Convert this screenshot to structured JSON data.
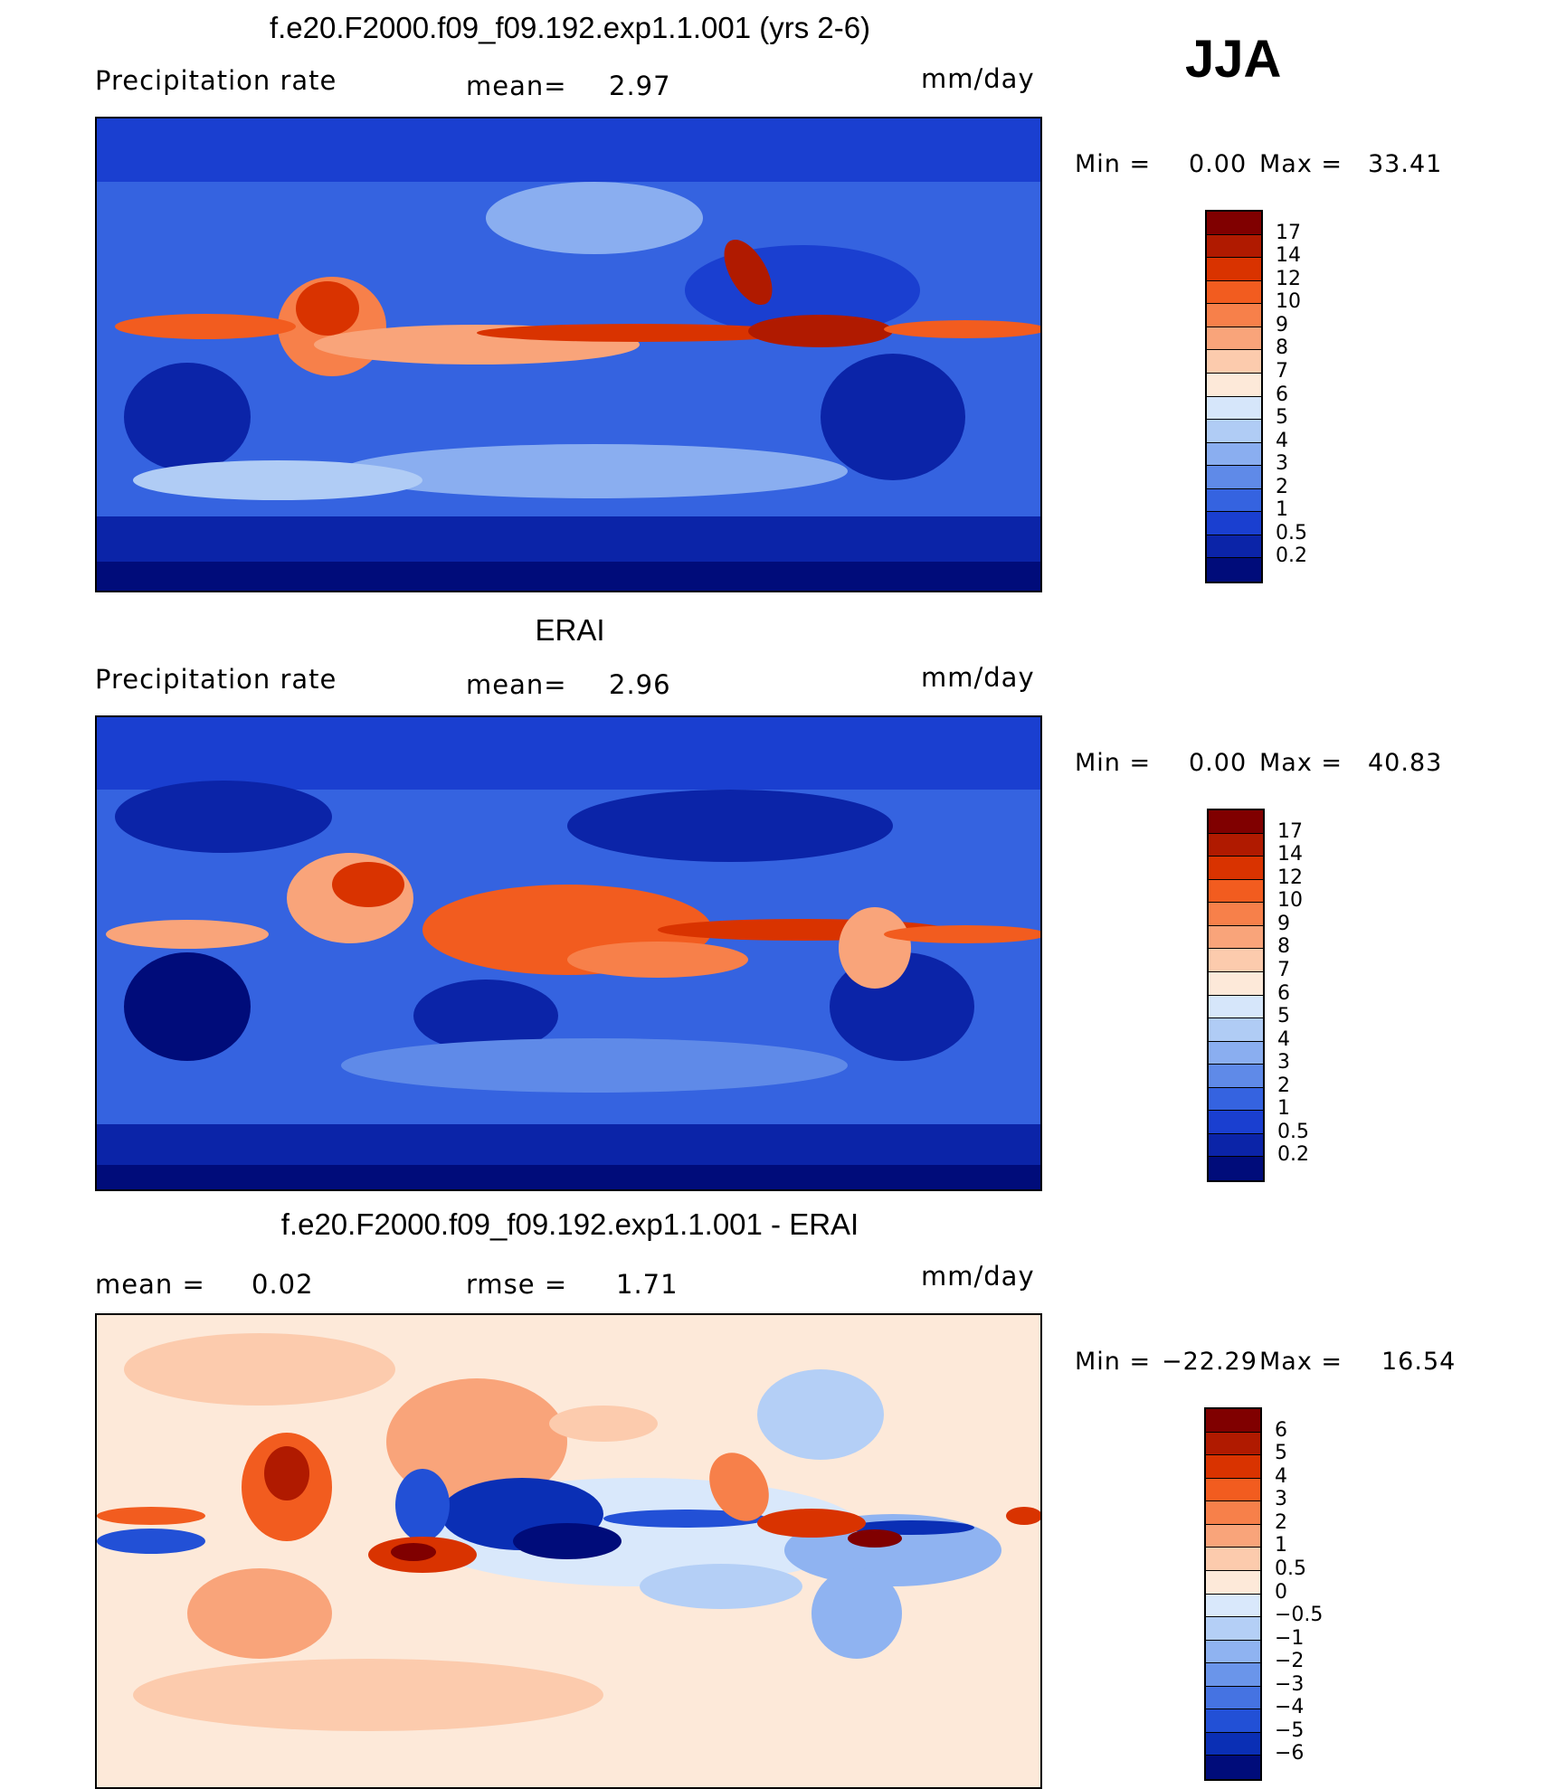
{
  "season": "JJA",
  "panels": [
    {
      "id": "model",
      "title": "f.e20.F2000.f09_f09.192.exp1.1.001 (yrs 2-6)",
      "left_label": "Precipitation  rate",
      "mid_label": "mean=",
      "mid_value": "2.97",
      "units": "mm/day",
      "min_label": "Min  =",
      "min_value": "0.00",
      "max_label": "Max  =",
      "max_value": "33.41",
      "colorbar_labels": [
        "17",
        "14",
        "12",
        "10",
        "9",
        "8",
        "7",
        "6",
        "5",
        "4",
        "3",
        "2",
        "1",
        "0.5",
        "0.2"
      ]
    },
    {
      "id": "obs",
      "title": "ERAI",
      "left_label": "Precipitation  rate",
      "mid_label": "mean=",
      "mid_value": "2.96",
      "units": "mm/day",
      "min_label": "Min  =",
      "min_value": "0.00",
      "max_label": "Max  =",
      "max_value": "40.83",
      "colorbar_labels": [
        "17",
        "14",
        "12",
        "10",
        "9",
        "8",
        "7",
        "6",
        "5",
        "4",
        "3",
        "2",
        "1",
        "0.5",
        "0.2"
      ]
    },
    {
      "id": "diff",
      "title": "f.e20.F2000.f09_f09.192.exp1.1.001 - ERAI",
      "left_label": "mean  =",
      "left_value": "0.02",
      "mid_label": "rmse  =",
      "mid_value": "1.71",
      "units": "mm/day",
      "min_label": "Min  =",
      "min_value": "−22.29",
      "max_label": "Max  =",
      "max_value": "16.54",
      "colorbar_labels": [
        "6",
        "5",
        "4",
        "3",
        "2",
        "1",
        "0.5",
        "0",
        "−0.5",
        "−1",
        "−2",
        "−3",
        "−4",
        "−5",
        "−6"
      ]
    }
  ],
  "colors": {
    "precip_scale": [
      "#800000",
      "#b01a00",
      "#d93300",
      "#f25c1f",
      "#f7804a",
      "#f9a47a",
      "#fccbad",
      "#fde9d9",
      "#d6e6fa",
      "#b0ccf5",
      "#8aaef0",
      "#5f8ae8",
      "#3563e0",
      "#1a3fd0",
      "#0b24a8",
      "#000c7a"
    ],
    "diff_scale": [
      "#800000",
      "#b01a00",
      "#d93300",
      "#f25c1f",
      "#f7804a",
      "#f9a47a",
      "#fccbad",
      "#fde9d9",
      "#d9e8fb",
      "#b4cff6",
      "#8fb3f1",
      "#6a95ea",
      "#4573e2",
      "#2250d6",
      "#0a2fb5",
      "#000c7a"
    ]
  }
}
